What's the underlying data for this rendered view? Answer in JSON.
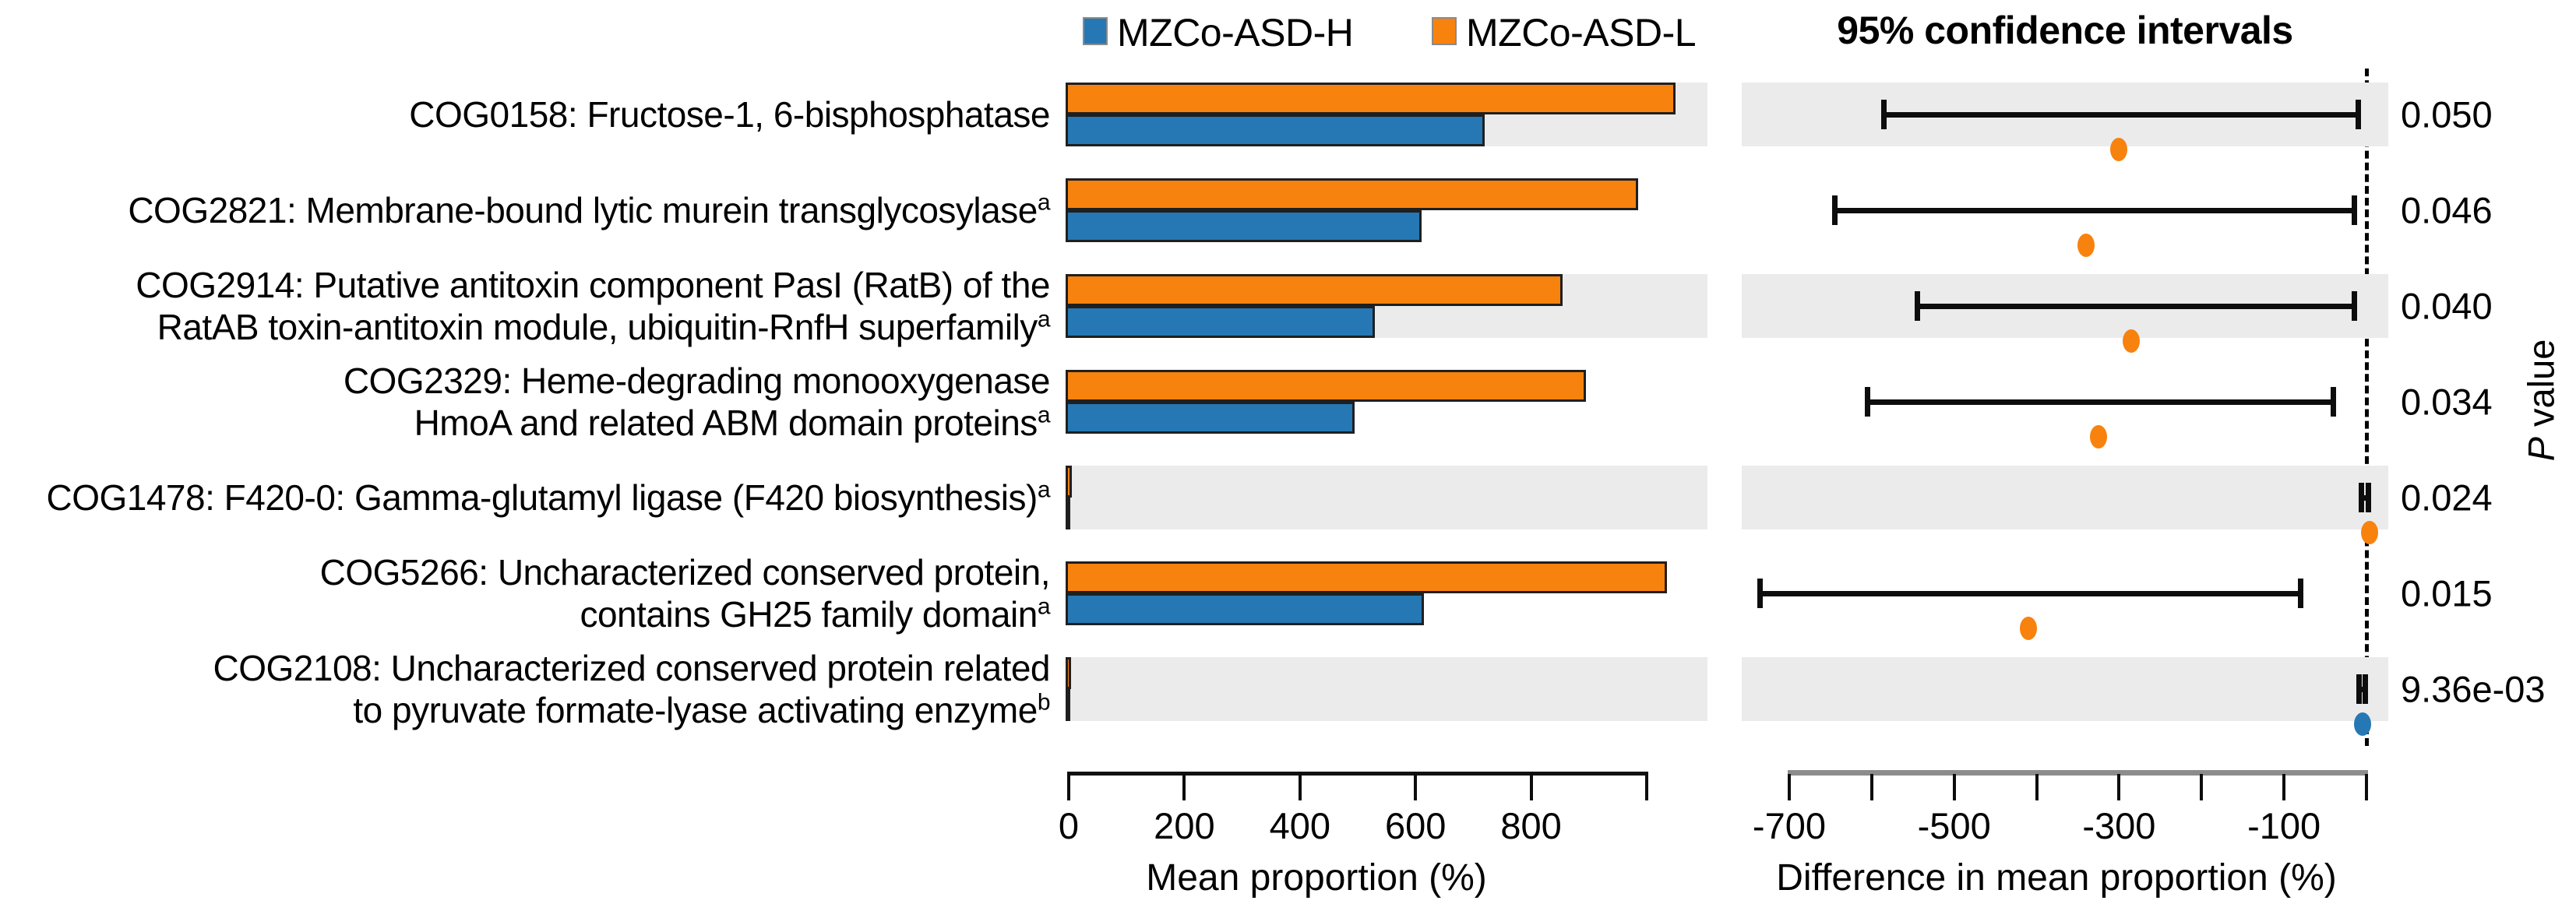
{
  "legend": {
    "items": [
      {
        "label": "MZCo-ASD-H",
        "color": "#2678b4"
      },
      {
        "label": "MZCo-ASD-L",
        "color": "#f8820e"
      }
    ]
  },
  "right_panel_title": "95% confidence intervals",
  "p_axis": {
    "italic": "P",
    "rest": " value"
  },
  "colors": {
    "MZCo-ASD-H": "#2678b4",
    "MZCo-ASD-L": "#f8820e",
    "band": "#ebebeb",
    "error_bar": "#0d0d0d",
    "left_axis_line": "#111111",
    "right_axis_line": "#8c8c8c"
  },
  "chart_data": {
    "type": "bar",
    "subtype": "stamp-extended-error-bar",
    "bar_order_top_to_bottom": [
      "MZCo-ASD-L",
      "MZCo-ASD-H"
    ],
    "left_panel": {
      "xlabel": "Mean proportion (%)",
      "ticks": [
        0,
        200,
        400,
        600,
        800,
        1000
      ],
      "tick_labels": [
        "0",
        "200",
        "400",
        "600",
        "800",
        ""
      ],
      "xlim": [
        0,
        1105
      ],
      "grid": false
    },
    "right_panel": {
      "xlabel": "Difference in mean proportion (%)",
      "ticks": [
        -700,
        -600,
        -500,
        -400,
        -300,
        -200,
        -100,
        0
      ],
      "tick_labels": [
        "-700",
        "",
        "-500",
        "",
        "-300",
        "",
        "-100",
        ""
      ],
      "xlim": [
        -758,
        27
      ],
      "zero_line": 0,
      "legend_position": "top"
    },
    "rows": [
      {
        "id": "COG0158",
        "label_lines": [
          "COG0158: Fructose-1, 6-bisphosphatase"
        ],
        "superscript": "",
        "means": {
          "MZCo-ASD-L": 1050,
          "MZCo-ASD-H": 720
        },
        "ci": [
          -585,
          -10
        ],
        "diff": -300,
        "dot": "MZCo-ASD-L",
        "p": "0.050",
        "shaded": true
      },
      {
        "id": "COG2821",
        "label_lines": [
          "COG2821: Membrane-bound lytic murein transglycosylase"
        ],
        "superscript": "a",
        "means": {
          "MZCo-ASD-L": 985,
          "MZCo-ASD-H": 610
        },
        "ci": [
          -645,
          -15
        ],
        "diff": -340,
        "dot": "MZCo-ASD-L",
        "p": "0.046",
        "shaded": false
      },
      {
        "id": "COG2914",
        "label_lines": [
          "COG2914: Putative antitoxin component PasI (RatB) of the",
          "RatAB toxin-antitoxin module, ubiquitin-RnfH superfamily"
        ],
        "superscript": "a",
        "means": {
          "MZCo-ASD-L": 855,
          "MZCo-ASD-H": 530
        },
        "ci": [
          -545,
          -15
        ],
        "diff": -285,
        "dot": "MZCo-ASD-L",
        "p": "0.040",
        "shaded": true
      },
      {
        "id": "COG2329",
        "label_lines": [
          "COG2329: Heme-degrading monooxygenase",
          "HmoA and related ABM domain proteins"
        ],
        "superscript": "a",
        "means": {
          "MZCo-ASD-L": 895,
          "MZCo-ASD-H": 495
        },
        "ci": [
          -605,
          -40
        ],
        "diff": -325,
        "dot": "MZCo-ASD-L",
        "p": "0.034",
        "shaded": false
      },
      {
        "id": "COG1478",
        "label_lines": [
          "COG1478: F420-0: Gamma-glutamyl ligase (F420 biosynthesis)"
        ],
        "superscript": "a",
        "means": {
          "MZCo-ASD-L": 5,
          "MZCo-ASD-H": 3
        },
        "ci": [
          -6,
          2
        ],
        "diff": 4,
        "dot": "MZCo-ASD-L",
        "p": "0.024",
        "shaded": true
      },
      {
        "id": "COG5266",
        "label_lines": [
          "COG5266: Uncharacterized conserved protein,",
          "contains GH25 family domain"
        ],
        "superscript": "a",
        "means": {
          "MZCo-ASD-L": 1035,
          "MZCo-ASD-H": 615
        },
        "ci": [
          -735,
          -80
        ],
        "diff": -410,
        "dot": "MZCo-ASD-L",
        "p": "0.015",
        "shaded": false
      },
      {
        "id": "COG2108",
        "label_lines": [
          "COG2108: Uncharacterized conserved protein related",
          "to pyruvate formate-lyase activating enzyme"
        ],
        "superscript": "b",
        "means": {
          "MZCo-ASD-L": 4,
          "MZCo-ASD-H": 2
        },
        "ci": [
          -9,
          -1
        ],
        "diff": -5,
        "dot": "MZCo-ASD-H",
        "p": "9.36e-03",
        "shaded": true
      }
    ]
  }
}
